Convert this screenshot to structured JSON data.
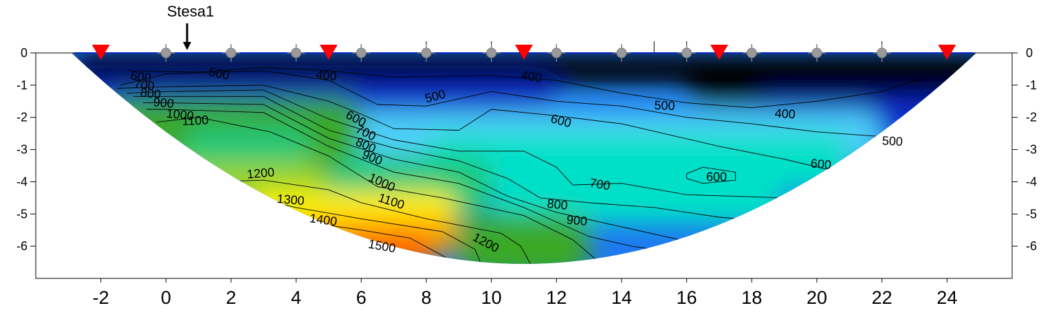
{
  "chart_data": {
    "type": "heatmap",
    "annotation": "Stesa1",
    "xlim": [
      -4,
      26
    ],
    "ylim": [
      -7,
      0
    ],
    "x_ticks": [
      -2,
      0,
      2,
      4,
      6,
      8,
      10,
      12,
      14,
      16,
      18,
      20,
      22,
      24
    ],
    "y_ticks": [
      0,
      -1,
      -2,
      -3,
      -4,
      -5,
      -6
    ],
    "annotation_x": 0.65,
    "geophones_x": [
      0,
      2,
      4,
      6,
      8,
      10,
      12,
      14,
      16,
      18,
      20,
      22
    ],
    "sources_x": [
      -2,
      5,
      11,
      17,
      24
    ],
    "colormap": [
      "#000000",
      "#0a2acc",
      "#1e78f0",
      "#4ed0f8",
      "#00e0c8",
      "#1ec87a",
      "#3aa828",
      "#9bd428",
      "#fff200",
      "#ffa500",
      "#ff5a00"
    ],
    "contours": [
      {
        "label": "400",
        "points": [
          [
            -1.2,
            -0.55
          ],
          [
            1,
            -0.6
          ],
          [
            3,
            -0.45
          ],
          [
            5,
            -0.55
          ],
          [
            7,
            -0.75
          ],
          [
            10,
            -0.7
          ],
          [
            12,
            -0.85
          ],
          [
            14,
            -1.25
          ],
          [
            16,
            -1.55
          ],
          [
            18,
            -1.7
          ],
          [
            20,
            -1.5
          ],
          [
            22,
            -1.2
          ],
          [
            23.5,
            -0.7
          ]
        ]
      },
      {
        "label": "500",
        "points": [
          [
            -1.4,
            -1.0
          ],
          [
            0,
            -0.65
          ],
          [
            3,
            -0.55
          ],
          [
            5,
            -0.85
          ],
          [
            6.5,
            -1.6
          ],
          [
            8,
            -1.65
          ],
          [
            10,
            -1.2
          ],
          [
            12,
            -1.5
          ],
          [
            14,
            -1.65
          ],
          [
            16,
            -2.0
          ],
          [
            18,
            -2.2
          ],
          [
            20,
            -2.45
          ],
          [
            22,
            -2.6
          ],
          [
            23,
            -2.8
          ]
        ]
      },
      {
        "label": "600",
        "points": [
          [
            -1.5,
            -1.1
          ],
          [
            0,
            -1.05
          ],
          [
            3,
            -1.0
          ],
          [
            5,
            -1.5
          ],
          [
            6,
            -1.9
          ],
          [
            7,
            -2.35
          ],
          [
            9,
            -2.4
          ],
          [
            10,
            -1.75
          ],
          [
            12,
            -1.95
          ],
          [
            14,
            -2.2
          ],
          [
            17,
            -2.9
          ],
          [
            19,
            -3.3
          ],
          [
            21.5,
            -3.9
          ]
        ]
      },
      {
        "label": "700",
        "points": [
          [
            -1.2,
            -1.25
          ],
          [
            0,
            -1.2
          ],
          [
            3,
            -1.15
          ],
          [
            5,
            -2.05
          ],
          [
            7,
            -2.7
          ],
          [
            9,
            -3.05
          ],
          [
            11,
            -3.05
          ],
          [
            12,
            -3.55
          ],
          [
            12.5,
            -4.1
          ],
          [
            14,
            -4.05
          ],
          [
            16,
            -4.4
          ],
          [
            19,
            -4.5
          ],
          [
            20.5,
            -4.6
          ]
        ]
      },
      {
        "label": "800",
        "points": [
          [
            -1.0,
            -1.35
          ],
          [
            0,
            -1.35
          ],
          [
            3,
            -1.35
          ],
          [
            5,
            -2.4
          ],
          [
            7,
            -2.95
          ],
          [
            9,
            -3.35
          ],
          [
            10.5,
            -3.9
          ],
          [
            11.5,
            -4.5
          ],
          [
            13,
            -4.65
          ],
          [
            15,
            -4.8
          ],
          [
            17,
            -5.1
          ],
          [
            19.5,
            -5.3
          ]
        ]
      },
      {
        "label": "900",
        "points": [
          [
            -0.7,
            -1.55
          ],
          [
            0,
            -1.55
          ],
          [
            3,
            -1.6
          ],
          [
            5,
            -2.65
          ],
          [
            7,
            -3.3
          ],
          [
            9,
            -3.7
          ],
          [
            10.5,
            -4.45
          ],
          [
            12,
            -4.95
          ],
          [
            14,
            -5.4
          ],
          [
            16,
            -5.85
          ],
          [
            18.2,
            -5.9
          ]
        ]
      },
      {
        "label": "1000",
        "points": [
          [
            -0.6,
            -1.75
          ],
          [
            0,
            -1.75
          ],
          [
            3,
            -1.85
          ],
          [
            5,
            -2.9
          ],
          [
            7,
            -3.7
          ],
          [
            9,
            -4.05
          ],
          [
            11,
            -4.8
          ],
          [
            13,
            -5.7
          ],
          [
            14.3,
            -6.0
          ],
          [
            15.3,
            -6.15
          ]
        ]
      },
      {
        "label": "1100",
        "points": [
          [
            -0.3,
            -2.15
          ],
          [
            1,
            -2.0
          ],
          [
            3.2,
            -2.45
          ],
          [
            5,
            -3.2
          ],
          [
            6.5,
            -4.15
          ],
          [
            8.5,
            -4.5
          ],
          [
            11,
            -5.05
          ],
          [
            12.5,
            -5.8
          ],
          [
            13.2,
            -6.4
          ]
        ]
      },
      {
        "label": "1200",
        "points": [
          [
            1.5,
            -4.0
          ],
          [
            3,
            -3.95
          ],
          [
            5,
            -4.25
          ],
          [
            6,
            -4.65
          ],
          [
            8,
            -5.15
          ],
          [
            10.3,
            -5.6
          ],
          [
            10.9,
            -6.0
          ],
          [
            11.2,
            -6.55
          ]
        ]
      },
      {
        "label": "1300",
        "points": [
          [
            2.9,
            -4.55
          ],
          [
            4,
            -4.8
          ],
          [
            6,
            -5.15
          ],
          [
            8.5,
            -5.55
          ],
          [
            9.5,
            -6.1
          ],
          [
            9.7,
            -6.6
          ]
        ]
      },
      {
        "label": "1400",
        "points": [
          [
            4,
            -5.2
          ],
          [
            6,
            -5.5
          ],
          [
            7.5,
            -5.75
          ],
          [
            8.6,
            -6.35
          ]
        ]
      },
      {
        "label": "1500",
        "points": [
          [
            5.5,
            -5.85
          ],
          [
            7,
            -6.05
          ],
          [
            7.8,
            -6.4
          ]
        ]
      },
      {
        "label": "600",
        "closed": true,
        "points": [
          [
            16,
            -3.75
          ],
          [
            16.5,
            -3.55
          ],
          [
            17.5,
            -3.7
          ],
          [
            17.5,
            -3.95
          ],
          [
            16.5,
            -4.05
          ],
          [
            16,
            -3.9
          ]
        ]
      }
    ],
    "contour_labels": [
      {
        "text": "600",
        "x": -1.1,
        "y": -0.82,
        "angle": 8
      },
      {
        "text": "700",
        "x": -1.0,
        "y": -1.08,
        "angle": 8
      },
      {
        "text": "800",
        "x": -0.8,
        "y": -1.35,
        "angle": 6
      },
      {
        "text": "900",
        "x": -0.4,
        "y": -1.65,
        "angle": 5
      },
      {
        "text": "1000",
        "x": 0.0,
        "y": -2.0,
        "angle": 6
      },
      {
        "text": "1100",
        "x": 0.5,
        "y": -2.25,
        "angle": -3
      },
      {
        "text": "500",
        "x": 1.3,
        "y": -0.7,
        "angle": 12
      },
      {
        "text": "400",
        "x": 4.6,
        "y": -0.8,
        "angle": 5
      },
      {
        "text": "600",
        "x": 5.5,
        "y": -2.0,
        "angle": 28
      },
      {
        "text": "700",
        "x": 5.8,
        "y": -2.45,
        "angle": 26
      },
      {
        "text": "800",
        "x": 5.8,
        "y": -2.85,
        "angle": 24
      },
      {
        "text": "900",
        "x": 6.0,
        "y": -3.25,
        "angle": 22
      },
      {
        "text": "1000",
        "x": 6.2,
        "y": -3.95,
        "angle": 25
      },
      {
        "text": "1100",
        "x": 6.5,
        "y": -4.6,
        "angle": 18
      },
      {
        "text": "1200",
        "x": 2.5,
        "y": -3.9,
        "angle": -5
      },
      {
        "text": "1300",
        "x": 3.4,
        "y": -4.65,
        "angle": 5
      },
      {
        "text": "1400",
        "x": 4.4,
        "y": -5.25,
        "angle": 8
      },
      {
        "text": "1500",
        "x": 6.2,
        "y": -6.05,
        "angle": 10
      },
      {
        "text": "1200",
        "x": 9.4,
        "y": -5.8,
        "angle": 28
      },
      {
        "text": "500",
        "x": 8.0,
        "y": -1.55,
        "angle": -15
      },
      {
        "text": "400",
        "x": 10.9,
        "y": -0.8,
        "angle": 10
      },
      {
        "text": "600",
        "x": 11.8,
        "y": -2.15,
        "angle": 15
      },
      {
        "text": "700",
        "x": 13.0,
        "y": -4.15,
        "angle": 10
      },
      {
        "text": "800",
        "x": 11.7,
        "y": -4.8,
        "angle": 6
      },
      {
        "text": "900",
        "x": 12.3,
        "y": -5.3,
        "angle": 5
      },
      {
        "text": "500",
        "x": 15.0,
        "y": -1.75,
        "angle": 2
      },
      {
        "text": "400",
        "x": 18.7,
        "y": -2.0,
        "angle": 3
      },
      {
        "text": "600",
        "x": 16.6,
        "y": -3.98,
        "angle": 0
      },
      {
        "text": "600",
        "x": 19.8,
        "y": -3.55,
        "angle": 5
      },
      {
        "text": "500",
        "x": 22.0,
        "y": -2.85,
        "angle": 3
      }
    ]
  }
}
